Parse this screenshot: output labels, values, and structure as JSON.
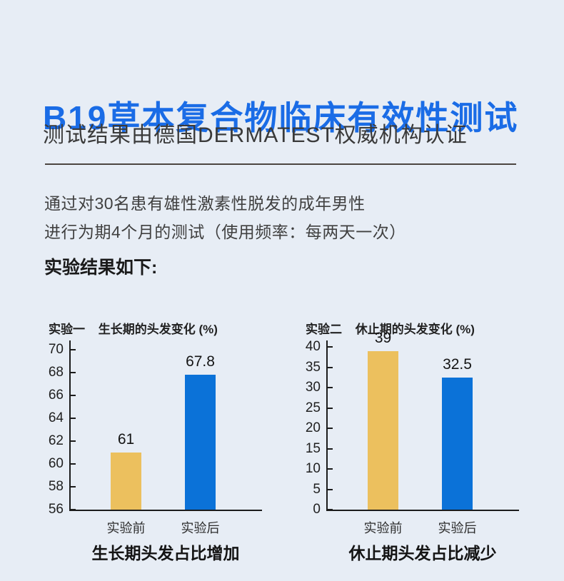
{
  "page": {
    "title": "B19草本复合物临床有效性测试",
    "subtitle": "测试结果由德国DERMATEST权威机构认证",
    "body_lines": [
      "通过对30名患有雄性激素性脱发的成年男性",
      "进行为期4个月的测试（使用频率：每两天一次）"
    ],
    "results_label": "实验结果如下:"
  },
  "colors": {
    "background": "#e7edf5",
    "title_blue": "#1a6ce6",
    "bar_yellow": "#ecc05e",
    "bar_blue": "#0b72d8",
    "axis": "#1c1c1c",
    "divider": "#4c4640"
  },
  "chart_data": [
    {
      "type": "bar",
      "experiment_label": "实验一",
      "title": "生长期的头发变化 (%)",
      "categories": [
        "实验前",
        "实验后"
      ],
      "values": [
        61,
        67.8
      ],
      "value_labels": [
        "61",
        "67.8"
      ],
      "bar_colors": [
        "#ecc05e",
        "#0b72d8"
      ],
      "ylim": [
        56,
        70
      ],
      "yticks": [
        56,
        58,
        60,
        62,
        64,
        66,
        68,
        70
      ],
      "xlabel": "",
      "ylabel": "",
      "grid": false,
      "legend": "none",
      "caption": "生长期头发占比增加"
    },
    {
      "type": "bar",
      "experiment_label": "实验二",
      "title": "休止期的头发变化 (%)",
      "categories": [
        "实验前",
        "实验后"
      ],
      "values": [
        39,
        32.5
      ],
      "value_labels": [
        "39",
        "32.5"
      ],
      "bar_colors": [
        "#ecc05e",
        "#0b72d8"
      ],
      "ylim": [
        0,
        40
      ],
      "yticks": [
        0,
        5,
        10,
        15,
        20,
        25,
        30,
        35,
        40
      ],
      "xlabel": "",
      "ylabel": "",
      "grid": false,
      "legend": "none",
      "caption": "休止期头发占比减少"
    }
  ]
}
